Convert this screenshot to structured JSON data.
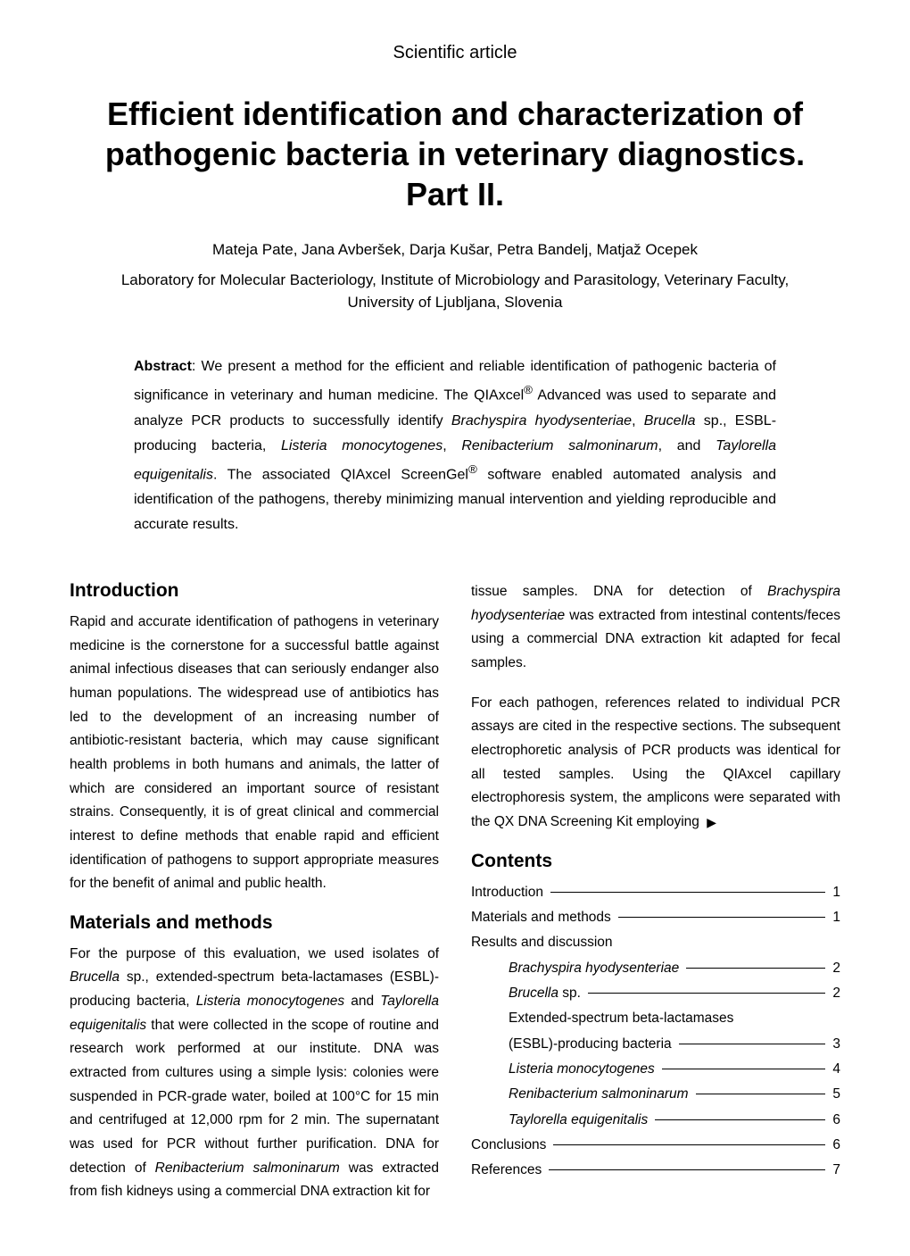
{
  "articleType": "Scientific article",
  "title": "Efficient identification and characterization of pathogenic bacteria in veterinary diagnostics. Part II.",
  "authors": "Mateja Pate, Jana Avberšek, Darja Kušar, Petra Bandelj, Matjaž Ocepek",
  "affiliation": "Laboratory for Molecular Bacteriology, Institute of Microbiology and Parasitology, Veterinary Faculty, University of Ljubljana, Slovenia",
  "abstract_html": "<b>Abstract</b>: We present a method for the efficient and reliable identification of pathogenic bacteria of significance in veterinary and human medicine. The QIAxcel<sup>®</sup> Advanced was used to separate and analyze PCR products to successfully identify <i>Brachyspira hyodysenteriae</i>, <i>Brucella</i> sp., ESBL-producing bacteria, <i>Listeria monocytogenes</i>, <i>Renibacterium salmoninarum</i>, and <i>Taylorella equigenitalis</i>. The associated QIAxcel ScreenGel<sup>®</sup> software enabled automated analysis and identification of the pathogens, thereby minimizing manual intervention and yielding reproducible and accurate results.",
  "sections": {
    "introduction": {
      "heading": "Introduction",
      "text": "Rapid and accurate identification of pathogens in veterinary medicine is the cornerstone for a successful battle against animal infectious diseases that can seriously endanger also human populations. The widespread use of antibiotics has led to the development of an increasing number of antibiotic-resistant bacteria, which may cause significant health problems in both humans and animals, the latter of which are considered an important source of resistant strains. Consequently, it is of great clinical and commercial interest to define methods that enable rapid and efficient identification of pathogens to support appropriate measures for the benefit of animal and public health."
    },
    "materials": {
      "heading": "Materials and methods",
      "text_html": "For the purpose of this evaluation, we used isolates of <i>Brucella</i> sp., extended-spectrum beta-lactamases (ESBL)-producing bacteria, <i>Listeria monocytogenes</i> and <i>Taylorella equigenitalis</i> that were collected in the scope of routine and research work performed at our institute. DNA was extracted from cultures using a simple lysis: colonies were suspended in PCR-grade water, boiled at 100°C for 15 min and centrifuged at 12,000 rpm for 2 min. The supernatant was used for PCR without further purification. DNA for detection of <i>Renibacterium salmoninarum</i> was extracted from fish kidneys using a commercial DNA extraction kit for"
    },
    "rightcol": {
      "para1_html": "tissue samples. DNA for detection of <i>Brachyspira hyodysenteriae</i> was extracted from intestinal contents/feces using a commercial DNA extraction kit adapted for fecal samples.",
      "para2_html": "For each pathogen, references related to individual PCR assays are cited in the respective sections. The subsequent electrophoretic analysis of PCR products was identical for all tested samples. Using the QIAxcel capillary electrophoresis system, the amplicons were separated with the QX DNA Screening Kit employing"
    },
    "contents": {
      "heading": "Contents",
      "items": [
        {
          "label_html": "Introduction",
          "page": "1",
          "indent": false,
          "leader": true
        },
        {
          "label_html": "Materials and methods",
          "page": "1",
          "indent": false,
          "leader": true
        },
        {
          "label_html": "Results and discussion",
          "page": "",
          "indent": false,
          "leader": false
        },
        {
          "label_html": "<i>Brachyspira hyodysenteriae</i>",
          "page": "2",
          "indent": true,
          "leader": true
        },
        {
          "label_html": "<i>Brucella</i> sp.",
          "page": "2",
          "indent": true,
          "leader": true
        },
        {
          "label_html": "Extended-spectrum beta-lactamases",
          "page": "",
          "indent": true,
          "leader": false
        },
        {
          "label_html": "(ESBL)-producing bacteria",
          "page": "3",
          "indent": true,
          "leader": true
        },
        {
          "label_html": "<i>Listeria monocytogenes</i>",
          "page": "4",
          "indent": true,
          "leader": true
        },
        {
          "label_html": "<i>Renibacterium salmoninarum</i>",
          "page": "5",
          "indent": true,
          "leader": true
        },
        {
          "label_html": "<i>Taylorella equigenitalis</i>",
          "page": "6",
          "indent": true,
          "leader": true
        },
        {
          "label_html": "Conclusions",
          "page": "6",
          "indent": false,
          "leader": true
        },
        {
          "label_html": "References",
          "page": "7",
          "indent": false,
          "leader": true
        }
      ]
    }
  },
  "arrow_glyph": "▶"
}
